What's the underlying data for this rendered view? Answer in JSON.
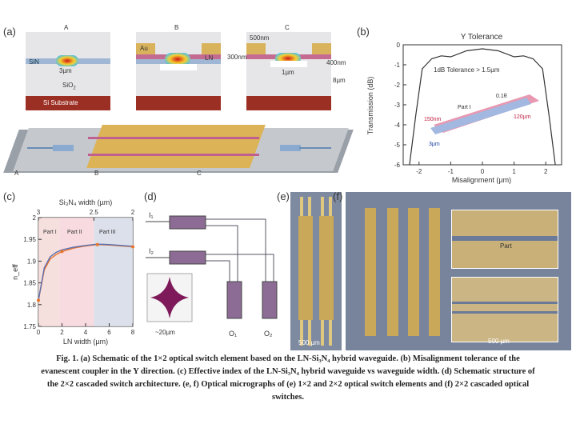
{
  "panels": {
    "a": {
      "label": "(a)",
      "titles": [
        "A",
        "B",
        "C"
      ],
      "labels": {
        "sin": "SiN",
        "au": "Au",
        "ln": "LN",
        "sio2": "SiO",
        "sio2_sub": "2",
        "substrate": "Si Substrate",
        "w_sin": "3µm",
        "w_ln": "1µm",
        "t_au": "500nm",
        "t_ln": "300nm",
        "t_sin": "400nm",
        "d_box": "8µm"
      },
      "marks": [
        "A",
        "B",
        "C"
      ]
    },
    "b": {
      "label": "(b)",
      "title": "Y Tolerance",
      "ylabel": "Transmission (dB)",
      "xlabel": "Misalignment (µm)",
      "annotation": "1dB Tolerance > 1.5µm",
      "inset": {
        "part": "Part I",
        "dim1": "150nm",
        "dim2": "120µm",
        "dim3": "3µm",
        "ang": "0.1θ"
      }
    },
    "c": {
      "label": "(c)",
      "top_axis_label": "Si₃N₄ width (µm)",
      "xlabel": "LN width (µm)",
      "ylabel": "n_eff",
      "regions": [
        "Part I",
        "Part II",
        "Part III"
      ]
    },
    "d": {
      "label": "(d)",
      "inputs": [
        "I₁",
        "I₂"
      ],
      "outputs": [
        "O₁",
        "O₂"
      ],
      "scale": "~20µm"
    },
    "e": {
      "label": "(e)",
      "scale": "500 µm"
    },
    "f": {
      "label": "(f)",
      "scale": "500 µm",
      "inset_text": "Part"
    }
  },
  "caption": {
    "line1": "Fig. 1. (a) Schematic of the 1×2 optical switch element based on the LN-Si₃N₄ hybrid waveguide. (b) Misalignment tolerance of the",
    "line2": "evanescent coupler in the Y direction. (c) Effective index of the LN-Si₃N₄ hybrid waveguide vs waveguide width. (d) Schematic structure of",
    "line3": "the 2×2 cascaded switch architecture. (e, f) Optical micrographs of (e) 1×2 and 2×2 optical switch elements and (f) 2×2 cascaded optical",
    "line4": "switches."
  },
  "chart_data": [
    {
      "type": "line",
      "title": "Y Tolerance",
      "xlabel": "Misalignment (µm)",
      "ylabel": "Transmission (dB)",
      "xlim": [
        -2.5,
        2.5
      ],
      "ylim": [
        -6,
        0
      ],
      "x_ticks": [
        -2,
        -1,
        0,
        1,
        2
      ],
      "y_ticks": [
        0,
        -1,
        -2,
        -3,
        -4,
        -5,
        -6
      ],
      "series": [
        {
          "x": [
            -2.3,
            -2.1,
            -1.9,
            -1.6,
            -1.3,
            -1.0,
            -0.5,
            0,
            0.5,
            1.0,
            1.3,
            1.6,
            1.9,
            2.1,
            2.3
          ],
          "y": [
            -6,
            -3.5,
            -1.2,
            -0.7,
            -0.55,
            -0.6,
            -0.3,
            -0.2,
            -0.3,
            -0.6,
            -0.55,
            -0.7,
            -1.2,
            -3.5,
            -6
          ]
        }
      ]
    },
    {
      "type": "line",
      "xlabel": "LN width (µm)",
      "top_axis_label": "Si₃N₄ width (µm)",
      "ylabel": "n_eff",
      "xlim": [
        0,
        8
      ],
      "ylim": [
        1.75,
        2.0
      ],
      "x_ticks": [
        0,
        2,
        4,
        6,
        8
      ],
      "y_ticks": [
        1.75,
        1.8,
        1.85,
        1.9,
        1.95,
        2.0
      ],
      "top_ticks": [
        "3",
        "2.5",
        "2"
      ],
      "series": [
        {
          "x": [
            0,
            0.5,
            1,
            1.5,
            2,
            3,
            4,
            5,
            6,
            7,
            8
          ],
          "y": [
            1.81,
            1.88,
            1.905,
            1.915,
            1.922,
            1.93,
            1.935,
            1.938,
            1.937,
            1.935,
            1.933
          ],
          "color": "#e8742e"
        },
        {
          "x": [
            0,
            0.5,
            1,
            1.5,
            2,
            3,
            4,
            5,
            6,
            7,
            8
          ],
          "y": [
            1.81,
            1.885,
            1.91,
            1.92,
            1.926,
            1.932,
            1.936,
            1.939,
            1.938,
            1.936,
            1.934
          ],
          "color": "#5a6fb0"
        }
      ]
    }
  ]
}
